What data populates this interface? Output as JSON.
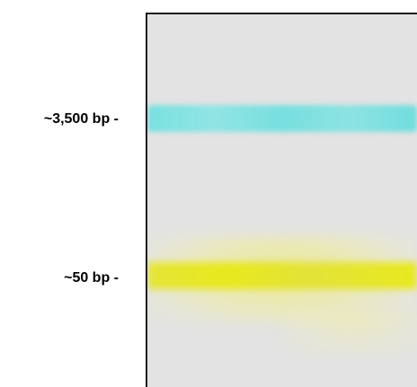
{
  "markers": {
    "high": "~3,500 bp -",
    "low": "~50 bp -"
  },
  "bands": {
    "upper_color": "#6fe0e0",
    "lower_color": "#e6e620",
    "background_color": "#e3e3e3"
  }
}
